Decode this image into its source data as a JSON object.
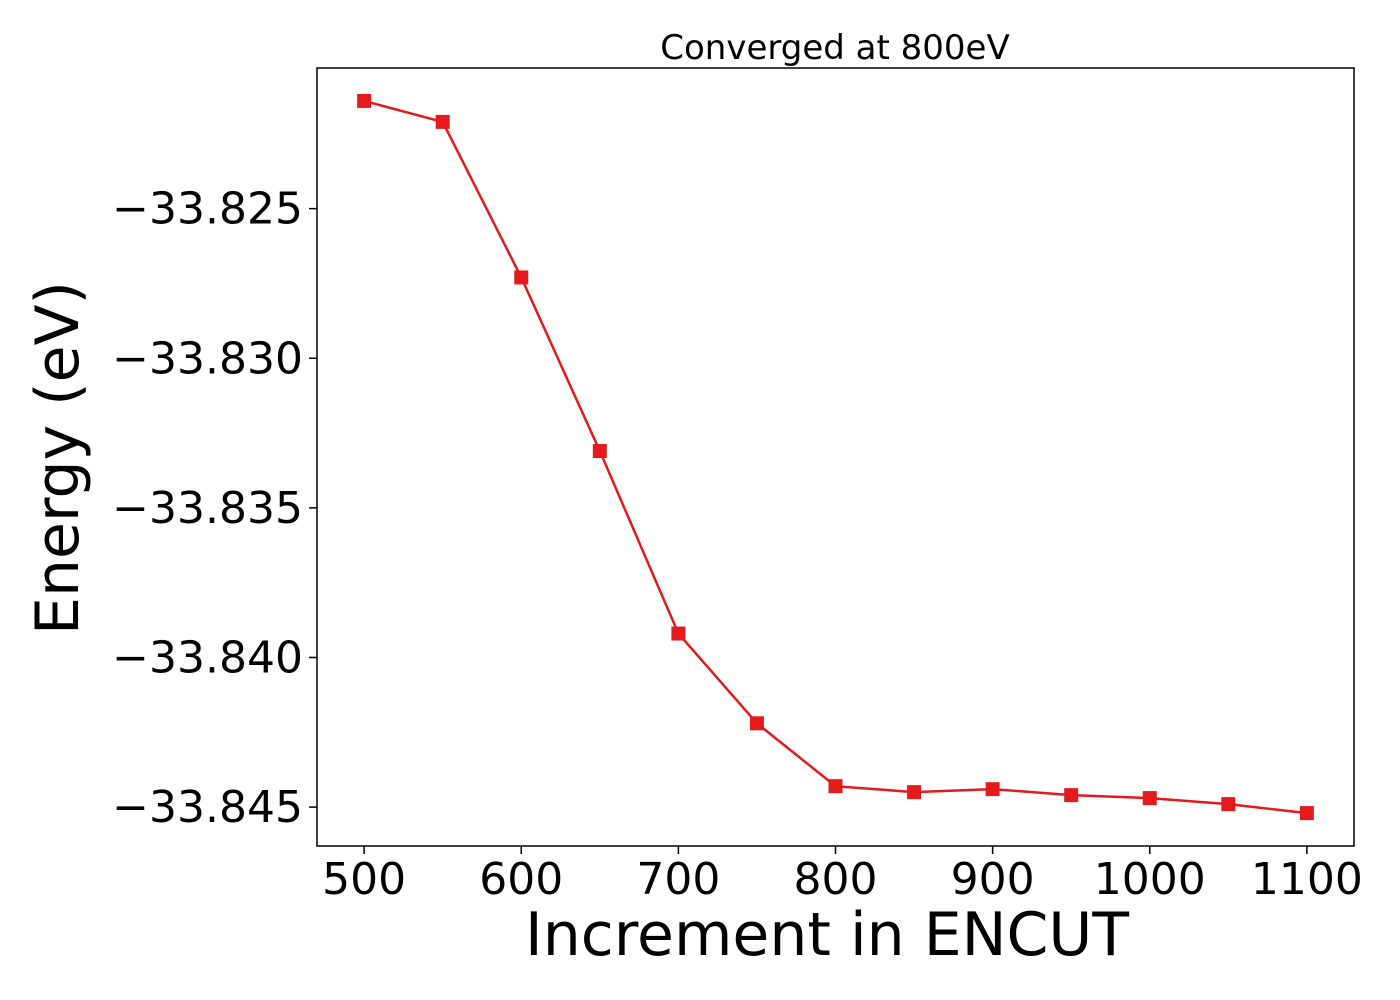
{
  "chart_data": {
    "type": "line",
    "title": "Converged at 800eV",
    "xlabel": "Increment in ENCUT",
    "ylabel": "Energy (eV)",
    "x": [
      500,
      550,
      600,
      650,
      700,
      750,
      800,
      850,
      900,
      950,
      1000,
      1050,
      1100
    ],
    "xlim": [
      470,
      1130
    ],
    "ylim": [
      -33.8463,
      -33.8203
    ],
    "xticks": [
      500,
      600,
      700,
      800,
      900,
      1000,
      1100
    ],
    "xtick_labels": [
      "500",
      "600",
      "700",
      "800",
      "900",
      "1000",
      "1100"
    ],
    "yticks": [
      -33.825,
      -33.83,
      -33.835,
      -33.84,
      -33.845
    ],
    "ytick_labels": [
      "−33.825",
      "−33.830",
      "−33.835",
      "−33.840",
      "−33.845"
    ],
    "grid": false,
    "series": [
      {
        "values": [
          -33.8214,
          -33.8221,
          -33.8273,
          -33.8331,
          -33.8392,
          -33.8422,
          -33.8443,
          -33.8445,
          -33.8444,
          -33.8446,
          -33.8447,
          -33.8449,
          -33.8452
        ],
        "color": "#e41a1c",
        "marker": "square"
      }
    ]
  }
}
